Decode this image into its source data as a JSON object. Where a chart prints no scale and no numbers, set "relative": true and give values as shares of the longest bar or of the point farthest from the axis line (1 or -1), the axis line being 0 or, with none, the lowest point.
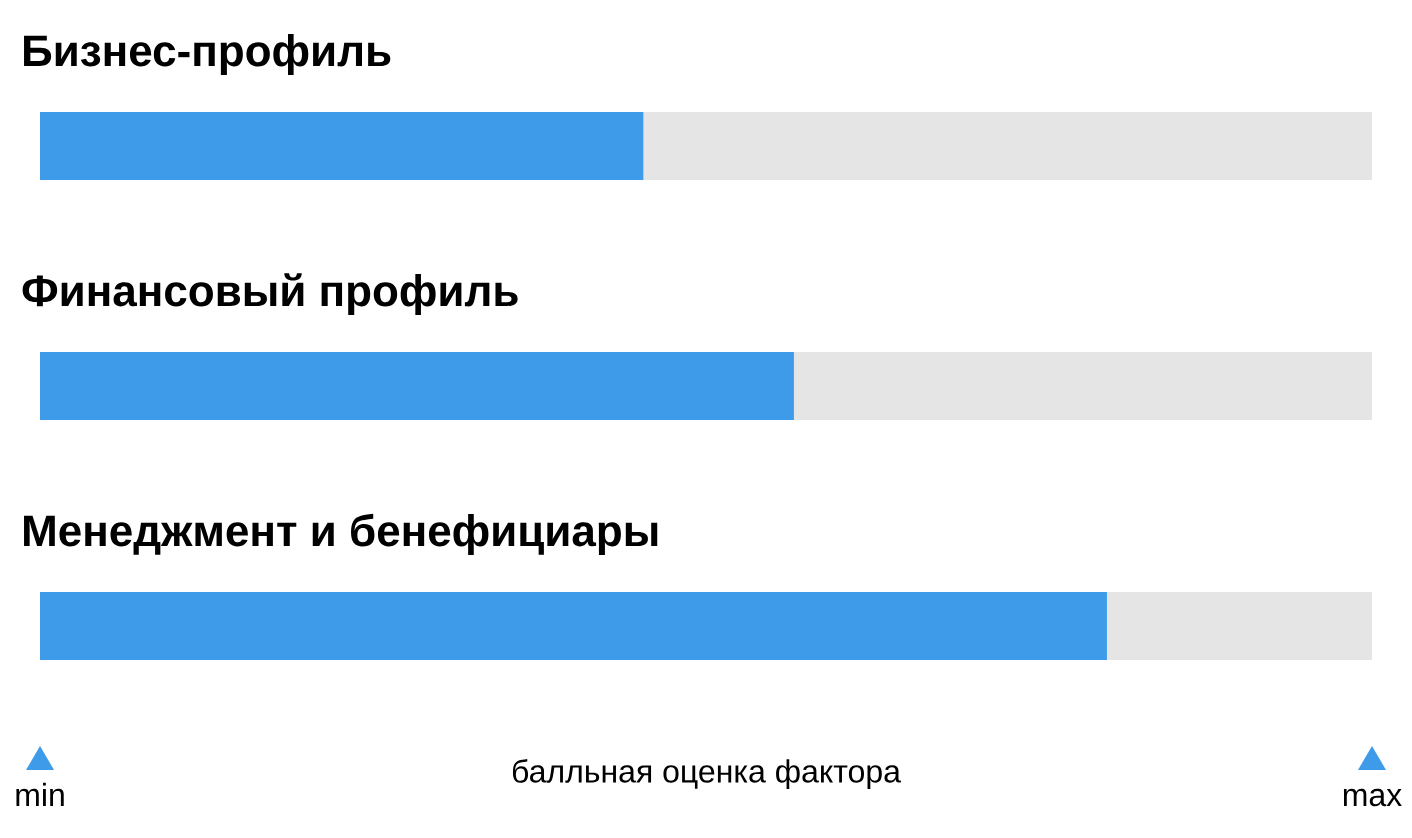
{
  "chart_data": {
    "type": "bar",
    "orientation": "horizontal",
    "stacked": true,
    "relative": true,
    "categories": [
      "Бизнес-профиль",
      "Финансовый профиль",
      "Менеджмент и бенефициары"
    ],
    "series": [
      {
        "color": "#3d9be9",
        "values": [
          0.453,
          0.566,
          0.801
        ]
      },
      {
        "color": "#e5e5e5",
        "values": [
          0.547,
          0.434,
          0.199
        ]
      }
    ],
    "xlabel": "балльная оценка фактора",
    "annotations": [
      "min",
      "max"
    ]
  }
}
